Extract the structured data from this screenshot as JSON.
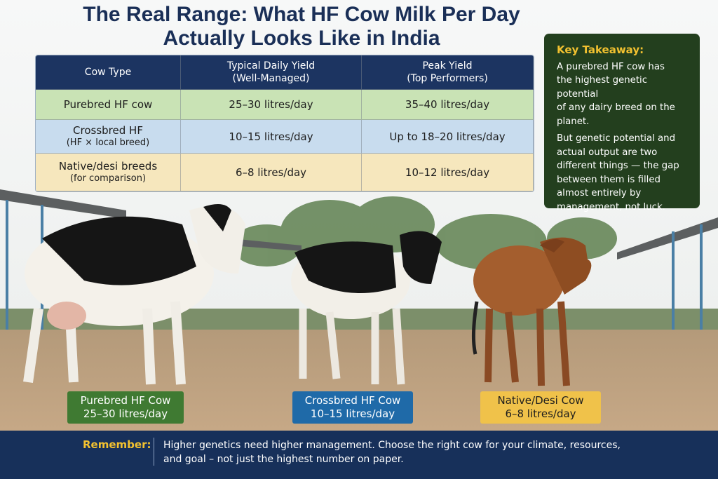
{
  "title_lines": [
    "The Real Range: What HF Cow Milk Per Day",
    "Actually Looks Like in India"
  ],
  "table": {
    "headers": [
      [
        "Cow Type"
      ],
      [
        "Typical Daily Yield",
        "(Well-Managed)"
      ],
      [
        "Peak Yield",
        "(Top Performers)"
      ]
    ],
    "rows": [
      [
        [
          "Purebred HF cow"
        ],
        [
          "25–30 litres/day"
        ],
        [
          "35–40 litres/day"
        ]
      ],
      [
        [
          "Crossbred HF",
          "(HF × local breed)"
        ],
        [
          "10–15 litres/day"
        ],
        [
          "Up to 18–20 litres/day"
        ]
      ],
      [
        [
          "Native/desi breeds",
          "(for comparison)"
        ],
        [
          "6–8 litres/day"
        ],
        [
          "10–12 litres/day"
        ]
      ]
    ]
  },
  "takeaway": {
    "title": "Key Takeaway:",
    "paragraphs": [
      [
        "A purebred HF cow has",
        "the highest genetic potential",
        "of any dairy breed on the",
        "planet."
      ],
      [
        "But genetic potential and",
        "actual output are two",
        "different things — the gap",
        "between them is filled",
        "almost entirely by",
        "management, not luck."
      ]
    ]
  },
  "cow_labels": [
    [
      "Purebred HF Cow",
      "25–30 litres/day"
    ],
    [
      "Crossbred HF Cow",
      "10–15 litres/day"
    ],
    [
      "Native/Desi Cow",
      "6–8 litres/day"
    ]
  ],
  "remember": {
    "label": "Remember:",
    "lines": [
      "Higher genetics need higher management. Choose the right cow for your climate, resources,",
      "and goal – not just the highest number on paper."
    ]
  }
}
